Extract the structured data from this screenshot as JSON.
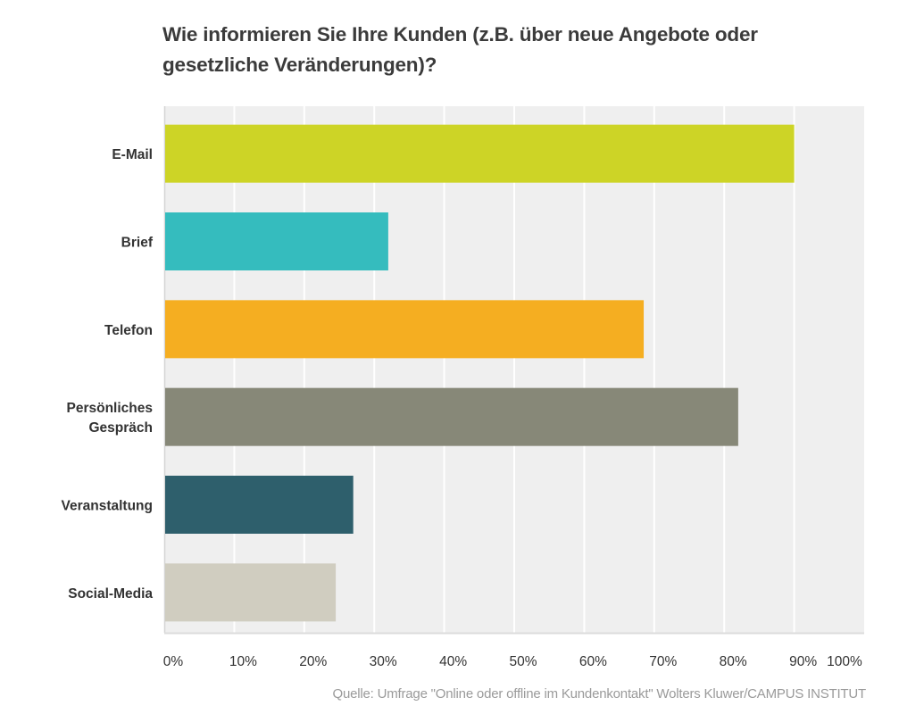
{
  "chart_data": {
    "type": "bar",
    "orientation": "horizontal",
    "title_lines": [
      "Wie informieren Sie Ihre Kunden (z.B. über neue Angebote oder",
      "gesetzliche Veränderungen)?"
    ],
    "categories": [
      [
        "E-Mail"
      ],
      [
        "Brief"
      ],
      [
        "Telefon"
      ],
      [
        "Persönliches",
        "Gespräch"
      ],
      [
        "Veranstaltung"
      ],
      [
        "Social-Media"
      ]
    ],
    "values": [
      90,
      32,
      68.5,
      82,
      27,
      24.5
    ],
    "colors": [
      "#cdd426",
      "#35bcbe",
      "#f5ae21",
      "#878878",
      "#2e5f6c",
      "#d0cdc0"
    ],
    "xlabel": "",
    "ylabel": "",
    "xlim": [
      0,
      100
    ],
    "x_ticks": [
      "0%",
      "10%",
      "20%",
      "30%",
      "40%",
      "50%",
      "60%",
      "70%",
      "80%",
      "90%",
      "100%"
    ],
    "grid": true,
    "legend": "none",
    "unit": "%"
  },
  "footer": {
    "source": "Quelle: Umfrage \"Online oder offline im Kundenkontakt\" Wolters Kluwer/CAMPUS INSTITUT"
  }
}
